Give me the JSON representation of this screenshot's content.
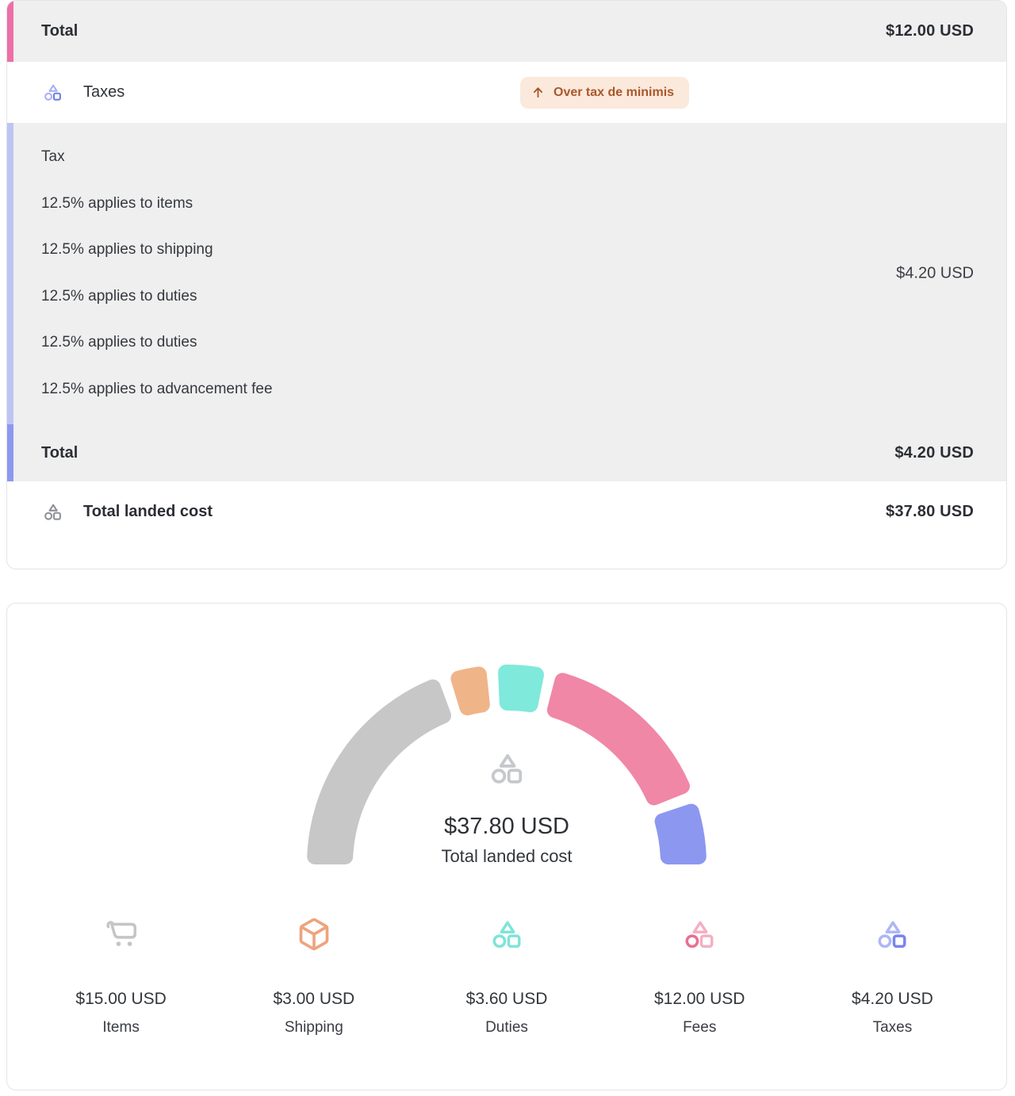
{
  "colors": {
    "accent_pink": "#EE6FA7",
    "accent_lavender": "#BDC4F4",
    "accent_periwinkle": "#8D98EF",
    "row_gray": "#EFEFEF",
    "badge_bg": "#FBE9DC",
    "badge_text": "#A9582B",
    "card_border": "#E3E4E6"
  },
  "card_breakdown": {
    "fees_total_row": {
      "label": "Total",
      "value": "$12.00 USD"
    },
    "taxes_row": {
      "label": "Taxes",
      "badge": "Over tax de minimis"
    },
    "tax_details": {
      "heading": "Tax",
      "lines": [
        "12.5% applies to items",
        "12.5% applies to shipping",
        "12.5% applies to duties",
        "12.5% applies to duties",
        "12.5% applies to advancement fee"
      ],
      "value": "$4.20 USD"
    },
    "tax_total_row": {
      "label": "Total",
      "value": "$4.20 USD"
    },
    "landed_cost_row": {
      "label": "Total landed cost",
      "value": "$37.80 USD"
    }
  },
  "chart_data": {
    "type": "pie",
    "variant": "semicircle-gauge-donut",
    "title": "Total landed cost",
    "center_value": "$37.80 USD",
    "center_label": "Total landed cost",
    "currency": "USD",
    "total": 37.8,
    "span_degrees": 180,
    "legend_position": "bottom",
    "segments": [
      {
        "name": "Items",
        "value": 15.0,
        "display": "$15.00 USD",
        "color": "#C7C7C8"
      },
      {
        "name": "Shipping",
        "value": 3.0,
        "display": "$3.00 USD",
        "color": "#F0B489"
      },
      {
        "name": "Duties",
        "value": 3.6,
        "display": "$3.60 USD",
        "color": "#7FE9DC"
      },
      {
        "name": "Fees",
        "value": 12.0,
        "display": "$12.00 USD",
        "color": "#F087A6"
      },
      {
        "name": "Taxes",
        "value": 4.2,
        "display": "$4.20 USD",
        "color": "#8C97F0"
      }
    ]
  },
  "stats": [
    {
      "value": "$15.00 USD",
      "label": "Items",
      "icon": "cart-icon"
    },
    {
      "value": "$3.00 USD",
      "label": "Shipping",
      "icon": "package-icon"
    },
    {
      "value": "$3.60 USD",
      "label": "Duties",
      "icon": "zonos-shapes-icon"
    },
    {
      "value": "$12.00 USD",
      "label": "Fees",
      "icon": "zonos-shapes-icon"
    },
    {
      "value": "$4.20 USD",
      "label": "Taxes",
      "icon": "zonos-shapes-icon"
    }
  ],
  "icon_colors": {
    "taxes_row": {
      "triangle": "#A7B0F2",
      "circle": "#A7B0F2",
      "square": "#6E7CE9"
    },
    "landed_cost_row": {
      "triangle": "#8E9196",
      "circle": "#8E9196",
      "square": "#8E9196"
    },
    "gauge_center": {
      "triangle": "#C6C8CC",
      "circle": "#C6C8CC",
      "square": "#C6C8CC"
    },
    "cart": "#C4C5C7",
    "package": "#EDA47E",
    "duties_stat": {
      "triangle": "#7FE4D9",
      "circle": "#7FE4D9",
      "square": "#7FE4D9"
    },
    "fees_stat": {
      "triangle": "#F5AFC2",
      "circle": "#E9708F",
      "square": "#F5AFC2"
    },
    "taxes_stat": {
      "triangle": "#AEB7F4",
      "circle": "#AEB7F4",
      "square": "#7885EC"
    },
    "badge_arrow": "#A9582B"
  }
}
